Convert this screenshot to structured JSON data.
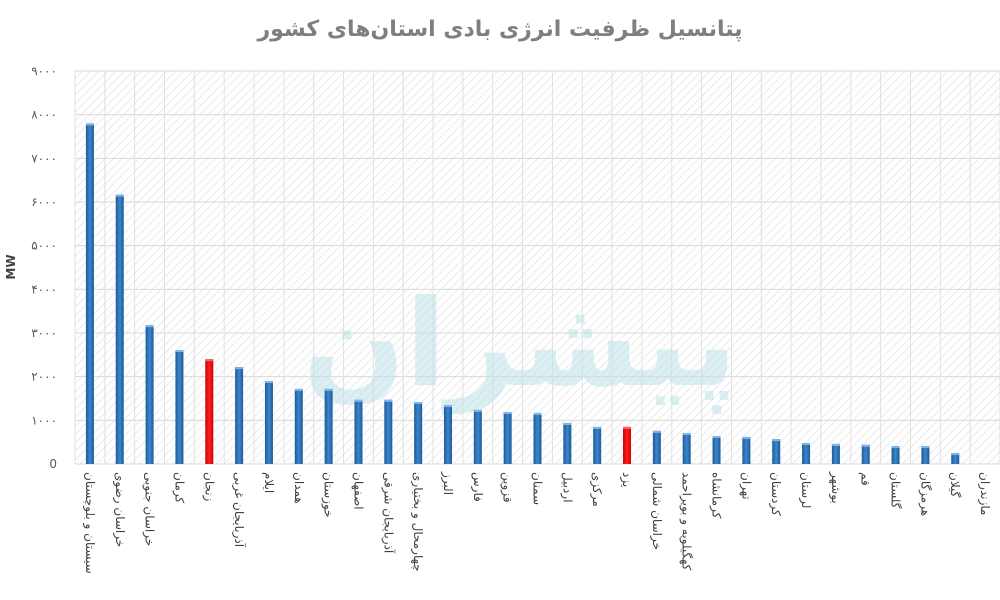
{
  "chart_data": {
    "type": "bar",
    "title": "پتانسیل ظرفیت انرژی بادی استان‌های کشور",
    "xlabel": "",
    "ylabel": "MW",
    "ylim": [
      0,
      9000
    ],
    "yticks": [
      0,
      1000,
      2000,
      3000,
      4000,
      5000,
      6000,
      7000,
      8000,
      9000
    ],
    "ytick_labels": [
      "0",
      "۱۰۰۰",
      "۲۰۰۰",
      "۳۰۰۰",
      "۴۰۰۰",
      "۵۰۰۰",
      "۶۰۰۰",
      "۷۰۰۰",
      "۸۰۰۰",
      "۹۰۰۰"
    ],
    "grid": true,
    "categories": [
      "سیستان و بلوچستان",
      "خراسان رضوی",
      "خراسان جنوبی",
      "کرمان",
      "زنجان",
      "آذربایجان غربی",
      "ایلام",
      "همدان",
      "خوزستان",
      "اصفهان",
      "آذربایجان شرقی",
      "چهارمحال و بختیاری",
      "البرز",
      "فارس",
      "قزوین",
      "سمنان",
      "اردبیل",
      "مرکزی",
      "یزد",
      "خراسان شمالی",
      "کهگیلویه و بویراحمد",
      "کرمانشاه",
      "تهران",
      "کردستان",
      "لرستان",
      "بوشهر",
      "قم",
      "گلستان",
      "هرمزگان",
      "گیلان",
      "مازندران"
    ],
    "values": [
      7800,
      6170,
      3180,
      2610,
      2400,
      2220,
      1900,
      1720,
      1720,
      1470,
      1470,
      1420,
      1350,
      1240,
      1190,
      1170,
      940,
      850,
      850,
      760,
      710,
      640,
      620,
      570,
      480,
      460,
      440,
      410,
      410,
      250,
      0
    ],
    "highlighted": [
      "زنجان",
      "یزد"
    ],
    "colors": {
      "bar": "#2e75b6",
      "highlight": "#ff0000",
      "title": "#7f7f7f"
    },
    "watermark": "پیشران"
  }
}
